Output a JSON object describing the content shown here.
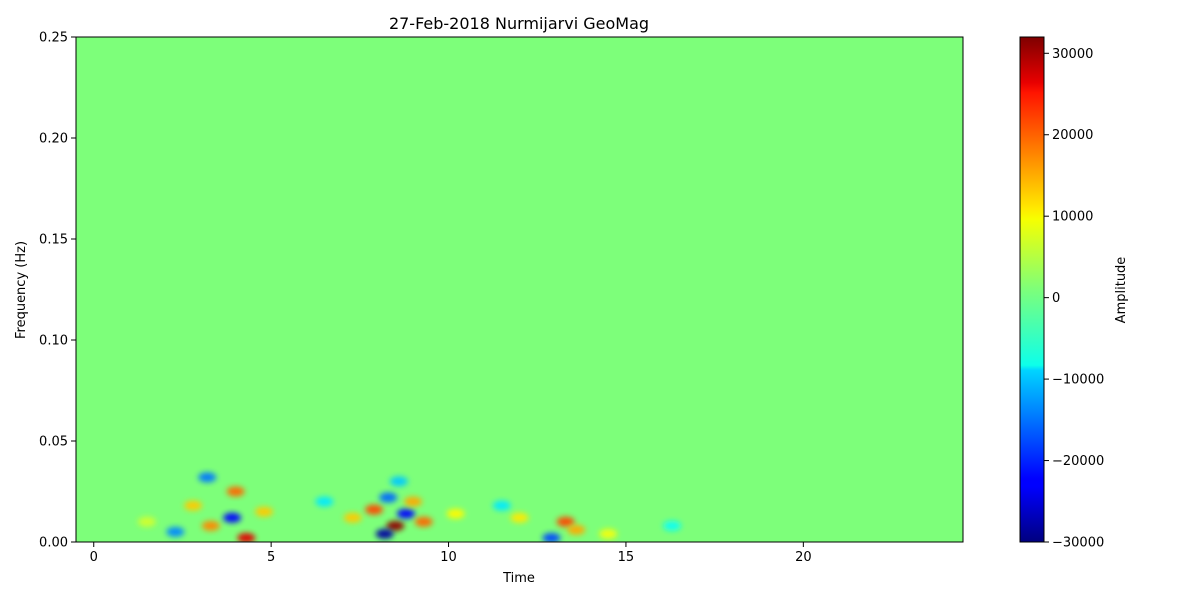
{
  "chart_data": {
    "type": "heatmap",
    "title": "27-Feb-2018 Nurmijarvi GeoMag",
    "xlabel": "Time",
    "ylabel": "Frequency (Hz)",
    "xlim": [
      -0.5,
      24.5
    ],
    "ylim": [
      0,
      0.25
    ],
    "x_ticks": [
      0,
      5,
      10,
      15,
      20
    ],
    "y_ticks": [
      0.0,
      0.05,
      0.1,
      0.15,
      0.2,
      0.25
    ],
    "x_tick_labels": [
      "0",
      "5",
      "10",
      "15",
      "20"
    ],
    "y_tick_labels": [
      "0.00",
      "0.05",
      "0.10",
      "0.15",
      "0.20",
      "0.25"
    ],
    "colormap": "jet",
    "colorbar": {
      "label": "Amplitude",
      "range": [
        -30000,
        32000
      ],
      "ticks": [
        -30000,
        -20000,
        -10000,
        0,
        10000,
        20000,
        30000
      ],
      "tick_labels": [
        "−30000",
        "−20000",
        "−10000",
        "0",
        "10000",
        "20000",
        "30000"
      ]
    },
    "hotspots": [
      {
        "time": 4.3,
        "freq": 0.002,
        "amplitude": 26000
      },
      {
        "time": 4.0,
        "freq": 0.025,
        "amplitude": 18000
      },
      {
        "time": 3.3,
        "freq": 0.008,
        "amplitude": 16000
      },
      {
        "time": 2.8,
        "freq": 0.018,
        "amplitude": 12000
      },
      {
        "time": 3.2,
        "freq": 0.032,
        "amplitude": -15000
      },
      {
        "time": 3.9,
        "freq": 0.012,
        "amplitude": -22000
      },
      {
        "time": 2.3,
        "freq": 0.005,
        "amplitude": -14000
      },
      {
        "time": 4.8,
        "freq": 0.015,
        "amplitude": 12000
      },
      {
        "time": 8.5,
        "freq": 0.008,
        "amplitude": 31000
      },
      {
        "time": 8.2,
        "freq": 0.004,
        "amplitude": -28000
      },
      {
        "time": 8.8,
        "freq": 0.014,
        "amplitude": -22000
      },
      {
        "time": 7.9,
        "freq": 0.016,
        "amplitude": 20000
      },
      {
        "time": 9.3,
        "freq": 0.01,
        "amplitude": 18000
      },
      {
        "time": 8.3,
        "freq": 0.022,
        "amplitude": -16000
      },
      {
        "time": 9.0,
        "freq": 0.02,
        "amplitude": 14000
      },
      {
        "time": 7.3,
        "freq": 0.012,
        "amplitude": 12000
      },
      {
        "time": 8.6,
        "freq": 0.03,
        "amplitude": -10000
      },
      {
        "time": 13.3,
        "freq": 0.01,
        "amplitude": 20000
      },
      {
        "time": 12.9,
        "freq": 0.002,
        "amplitude": -18000
      },
      {
        "time": 13.6,
        "freq": 0.006,
        "amplitude": 14000
      },
      {
        "time": 12.0,
        "freq": 0.012,
        "amplitude": 10000
      },
      {
        "time": 11.5,
        "freq": 0.018,
        "amplitude": -8000
      },
      {
        "time": 14.5,
        "freq": 0.004,
        "amplitude": 8000
      },
      {
        "time": 10.2,
        "freq": 0.014,
        "amplitude": 9000
      },
      {
        "time": 6.5,
        "freq": 0.02,
        "amplitude": -8000
      },
      {
        "time": 1.5,
        "freq": 0.01,
        "amplitude": 6000
      },
      {
        "time": 16.3,
        "freq": 0.008,
        "amplitude": -6000
      }
    ]
  }
}
